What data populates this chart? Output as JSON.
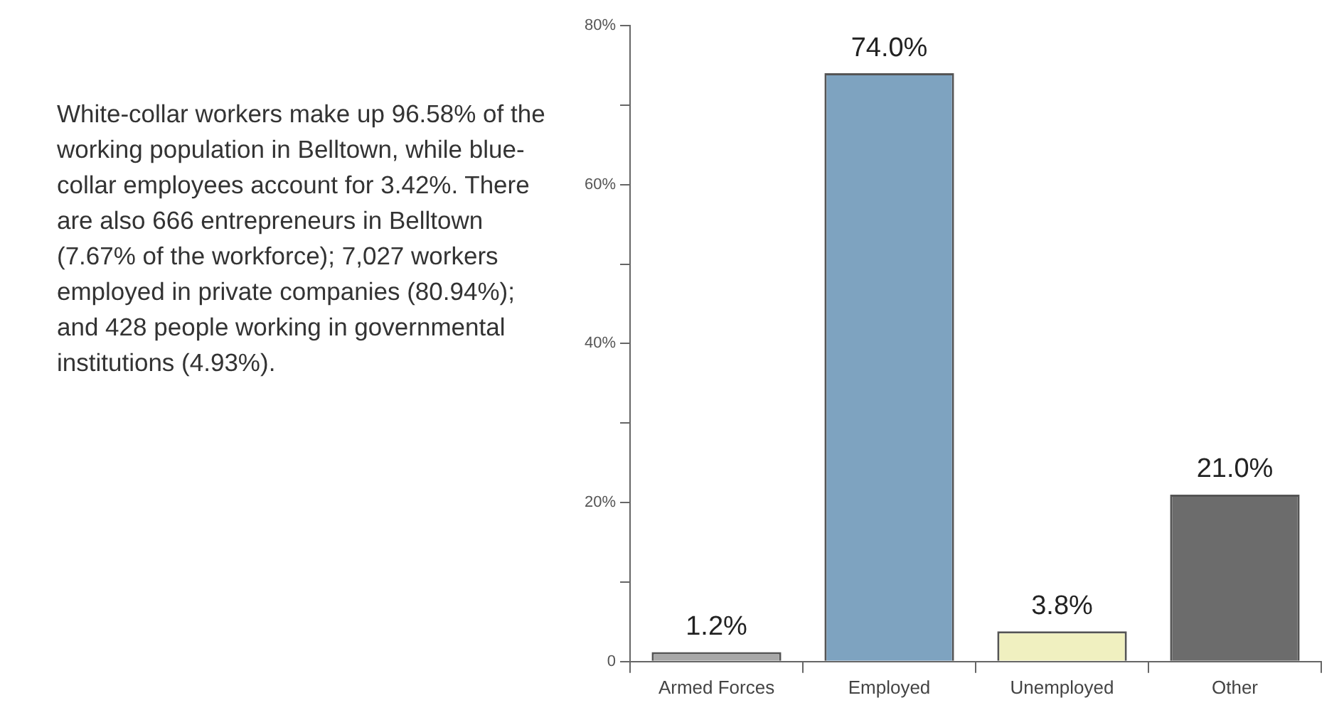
{
  "chart_data": {
    "type": "bar",
    "categories": [
      "Armed Forces",
      "Employed",
      "Unemployed",
      "Other"
    ],
    "values": [
      1.2,
      74.0,
      3.8,
      21.0
    ],
    "value_labels": [
      "1.2%",
      "74.0%",
      "3.8%",
      "21.0%"
    ],
    "colors": [
      "#a8a8a8",
      "#7ea3c0",
      "#f0f0c0",
      "#6c6c6c"
    ],
    "ylim": [
      0,
      80
    ],
    "yticks": [
      {
        "value": 0,
        "label": "0"
      },
      {
        "value": 10,
        "label": null
      },
      {
        "value": 20,
        "label": "20%"
      },
      {
        "value": 30,
        "label": null
      },
      {
        "value": 40,
        "label": "40%"
      },
      {
        "value": 50,
        "label": null
      },
      {
        "value": 60,
        "label": "60%"
      },
      {
        "value": 70,
        "label": null
      },
      {
        "value": 80,
        "label": "80%"
      }
    ],
    "grid": false,
    "legend": false,
    "annotations": [
      "White-collar workers make up 96.58% of the working population in Belltown, while blue-collar employees account for 3.42%. There are also 666 entrepreneurs in Belltown (7.67% of the workforce); 7,027 workers employed in private companies (80.94%); and 428 people working in governmental institutions (4.93%)."
    ]
  }
}
